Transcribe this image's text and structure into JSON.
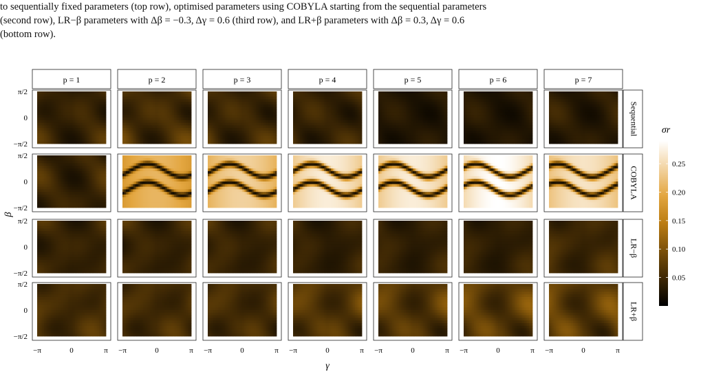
{
  "caption": {
    "lines": [
      "to sequentially fixed parameters (top row), optimised parameters using COBYLA starting from the sequential parameters",
      "(second row), LR−β parameters with Δβ = −0.3, Δγ = 0.6 (third row), and LR+β parameters with Δβ = 0.3, Δγ = 0.6",
      "(bottom row)."
    ]
  },
  "figure": {
    "column_headers": [
      "p = 1",
      "p = 2",
      "p = 3",
      "p = 4",
      "p = 5",
      "p = 6",
      "p = 7"
    ],
    "row_labels": [
      "Sequential",
      "COBYLA",
      "LR−β",
      "LR+β"
    ],
    "x_axis": {
      "label": "γ",
      "ticks": [
        "−π",
        "0",
        "π"
      ]
    },
    "y_axis": {
      "label": "β",
      "ticks": [
        "π/2",
        "0",
        "−π/2"
      ]
    },
    "colorbar": {
      "label": "σr",
      "ticks": [
        "0.25",
        "0.20",
        "0.15",
        "0.10",
        "0.05"
      ],
      "tick_values": [
        0.25,
        0.2,
        0.15,
        0.1,
        0.05
      ],
      "range": [
        0.0,
        0.29
      ],
      "colors": [
        "#000000",
        "#3d2704",
        "#7a5009",
        "#bb7c12",
        "#e3a640",
        "#f2d3a1",
        "#ffffff"
      ]
    }
  },
  "chart_data": {
    "type": "heatmap",
    "x_label": "γ",
    "y_label": "β",
    "x_range": [
      "−π",
      "π"
    ],
    "y_range": [
      "−π/2",
      "π/2"
    ],
    "colorbar_label": "σr",
    "colorbar_range": [
      0.0,
      0.29
    ],
    "columns": [
      "p = 1",
      "p = 2",
      "p = 3",
      "p = 4",
      "p = 5",
      "p = 6",
      "p = 7"
    ],
    "rows": [
      "Sequential",
      "COBYLA",
      "LR−β",
      "LR+β"
    ],
    "panels": [
      {
        "row": "Sequential",
        "col": "p = 1",
        "pattern": "blobs",
        "max": 0.08
      },
      {
        "row": "Sequential",
        "col": "p = 2",
        "pattern": "blobs",
        "max": 0.1
      },
      {
        "row": "Sequential",
        "col": "p = 3",
        "pattern": "blobs",
        "max": 0.09
      },
      {
        "row": "Sequential",
        "col": "p = 4",
        "pattern": "blobs",
        "max": 0.08
      },
      {
        "row": "Sequential",
        "col": "p = 5",
        "pattern": "blobs",
        "max": 0.05
      },
      {
        "row": "Sequential",
        "col": "p = 6",
        "pattern": "blobs",
        "max": 0.05
      },
      {
        "row": "Sequential",
        "col": "p = 7",
        "pattern": "blobs",
        "max": 0.06
      },
      {
        "row": "COBYLA",
        "col": "p = 1",
        "pattern": "blobs",
        "max": 0.08
      },
      {
        "row": "COBYLA",
        "col": "p = 2",
        "pattern": "waves",
        "max": 0.21
      },
      {
        "row": "COBYLA",
        "col": "p = 3",
        "pattern": "waves",
        "max": 0.24
      },
      {
        "row": "COBYLA",
        "col": "p = 4",
        "pattern": "waves",
        "max": 0.27
      },
      {
        "row": "COBYLA",
        "col": "p = 5",
        "pattern": "waves",
        "max": 0.27
      },
      {
        "row": "COBYLA",
        "col": "p = 6",
        "pattern": "waves",
        "max": 0.29
      },
      {
        "row": "COBYLA",
        "col": "p = 7",
        "pattern": "waves",
        "max": 0.26
      },
      {
        "row": "LR−β",
        "col": "p = 1",
        "pattern": "blobs",
        "max": 0.08
      },
      {
        "row": "LR−β",
        "col": "p = 2",
        "pattern": "blobs",
        "max": 0.08
      },
      {
        "row": "LR−β",
        "col": "p = 3",
        "pattern": "blobs",
        "max": 0.08
      },
      {
        "row": "LR−β",
        "col": "p = 4",
        "pattern": "blobs",
        "max": 0.07
      },
      {
        "row": "LR−β",
        "col": "p = 5",
        "pattern": "blobs",
        "max": 0.07
      },
      {
        "row": "LR−β",
        "col": "p = 6",
        "pattern": "blobs",
        "max": 0.07
      },
      {
        "row": "LR−β",
        "col": "p = 7",
        "pattern": "blobs",
        "max": 0.09
      },
      {
        "row": "LR+β",
        "col": "p = 1",
        "pattern": "blobs",
        "max": 0.1
      },
      {
        "row": "LR+β",
        "col": "p = 2",
        "pattern": "blobs",
        "max": 0.1
      },
      {
        "row": "LR+β",
        "col": "p = 3",
        "pattern": "blobs",
        "max": 0.1
      },
      {
        "row": "LR+β",
        "col": "p = 4",
        "pattern": "blobs",
        "max": 0.12
      },
      {
        "row": "LR+β",
        "col": "p = 5",
        "pattern": "blobs",
        "max": 0.12
      },
      {
        "row": "LR+β",
        "col": "p = 6",
        "pattern": "blobs",
        "max": 0.13
      },
      {
        "row": "LR+β",
        "col": "p = 7",
        "pattern": "blobs",
        "max": 0.13
      }
    ]
  }
}
